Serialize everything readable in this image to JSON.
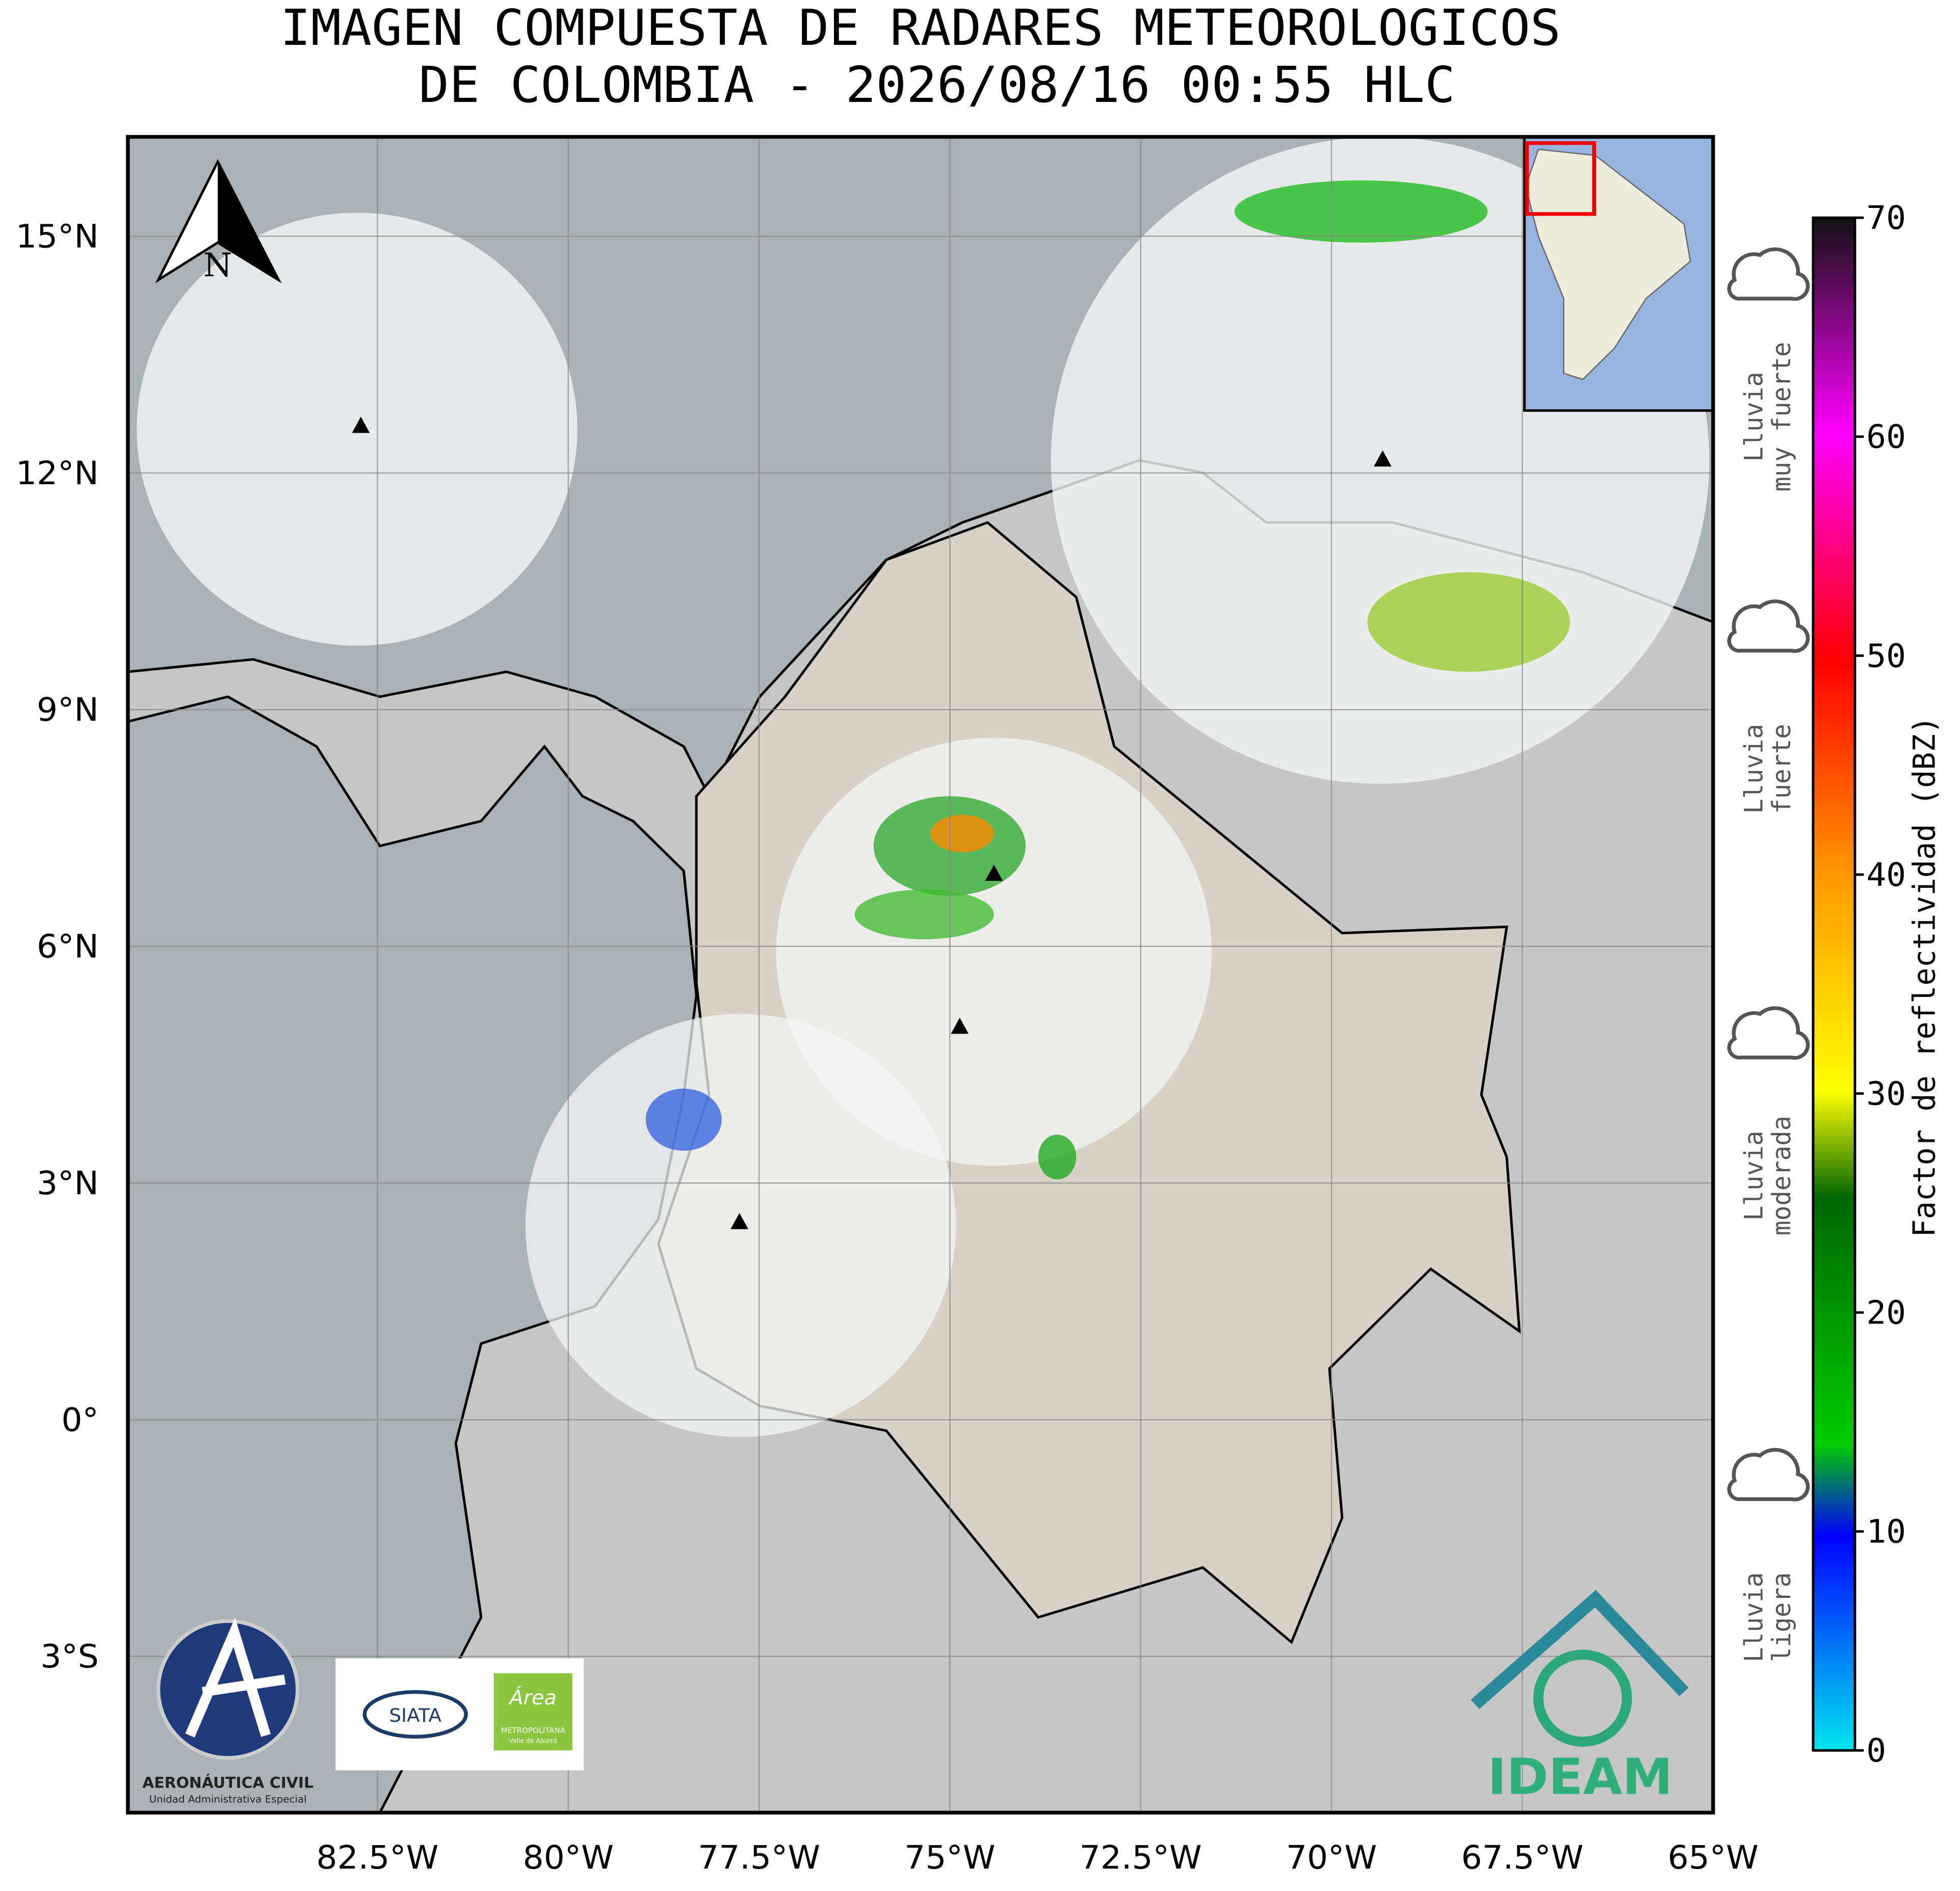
{
  "title": [
    "IMAGEN COMPUESTA DE RADARES METEOROLOGICOS",
    "DE COLOMBIA - 2026/08/16 00:55 HLC"
  ],
  "map": {
    "lonlim": [
      -85.77,
      -65
    ],
    "latlim": [
      -4.98,
      16.26
    ],
    "lon_ticks": [
      {
        "value": -82.5,
        "label": "82.5°W"
      },
      {
        "value": -80,
        "label": "80°W"
      },
      {
        "value": -77.5,
        "label": "77.5°W"
      },
      {
        "value": -75,
        "label": "75°W"
      },
      {
        "value": -72.5,
        "label": "72.5°W"
      },
      {
        "value": -70,
        "label": "70°W"
      },
      {
        "value": -67.5,
        "label": "67.5°W"
      },
      {
        "value": -65,
        "label": "65°W"
      }
    ],
    "lat_ticks": [
      {
        "value": 15,
        "label": "15°N"
      },
      {
        "value": 12,
        "label": "12°N"
      },
      {
        "value": 9,
        "label": "9°N"
      },
      {
        "value": 6,
        "label": "6°N"
      },
      {
        "value": 3,
        "label": "3°N"
      },
      {
        "value": 0,
        "label": "0°"
      },
      {
        "value": -3,
        "label": "3°S"
      }
    ],
    "north_label": "N"
  },
  "colorbar": {
    "label": "Factor de reflectividad (dBZ)",
    "lim": [
      0,
      70
    ],
    "ticks": [
      0,
      10,
      20,
      30,
      40,
      50,
      60,
      70
    ]
  },
  "rain_levels": [
    [
      "Lluvia",
      "muy fuerte"
    ],
    [
      "Lluvia",
      "fuerte"
    ],
    [
      "Lluvia",
      "moderada"
    ],
    [
      "Lluvia",
      "ligera"
    ]
  ],
  "logos": {
    "aerocivil": "AERONÁUTICA CIVIL",
    "aerocivil_sub": "Unidad Administrativa Especial",
    "siata": "SIATA",
    "area": "Área",
    "area_sub1": "METROPOLITANA",
    "area_sub2": "Valle de Aburrá",
    "ideam": "IDEAM"
  }
}
